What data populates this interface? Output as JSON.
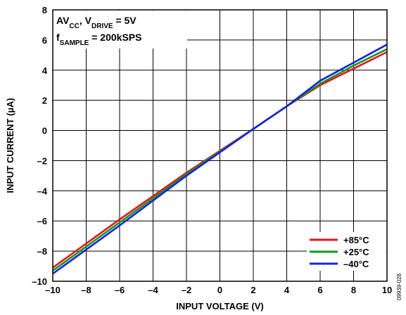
{
  "chart_data": {
    "type": "line",
    "xlabel": "INPUT VOLTAGE (V)",
    "ylabel": "INPUT CURRENT (µA)",
    "xlim": [
      -10,
      10
    ],
    "ylim": [
      -10,
      8
    ],
    "xticks": [
      "–10",
      "–8",
      "–6",
      "–4",
      "–2",
      "0",
      "2",
      "4",
      "6",
      "8",
      "10"
    ],
    "yticks": [
      "8",
      "6",
      "4",
      "2",
      "0",
      "–2",
      "–4",
      "–6",
      "–8",
      "–10"
    ],
    "grid": true,
    "annotation": {
      "line1": {
        "base": "AV",
        "sub1": "CC",
        "mid": ", V",
        "sub2": "DRIVE",
        "tail": " = 5V"
      },
      "line2": {
        "base": "f",
        "sub": "SAMPLE",
        "tail": " = 200kSPS"
      }
    },
    "legend_position": "bottom-right",
    "series": [
      {
        "name": "+85°C",
        "color": "#e8141b",
        "x": [
          -10,
          -6,
          -2,
          2,
          4,
          6,
          8,
          10
        ],
        "y": [
          -9.1,
          -5.9,
          -2.8,
          0.1,
          1.6,
          3.0,
          4.1,
          5.2
        ]
      },
      {
        "name": "+25°C",
        "color": "#0f9a1d",
        "x": [
          -10,
          -6,
          -2,
          2,
          4,
          6,
          8,
          10
        ],
        "y": [
          -9.3,
          -6.1,
          -2.9,
          0.1,
          1.6,
          3.1,
          4.3,
          5.4
        ]
      },
      {
        "name": "–40°C",
        "color": "#1624d6",
        "x": [
          -10,
          -6,
          -2,
          2,
          4,
          6,
          8,
          10
        ],
        "y": [
          -9.5,
          -6.3,
          -3.0,
          0.1,
          1.6,
          3.3,
          4.5,
          5.7
        ]
      }
    ],
    "figure_id": "09939-028"
  }
}
